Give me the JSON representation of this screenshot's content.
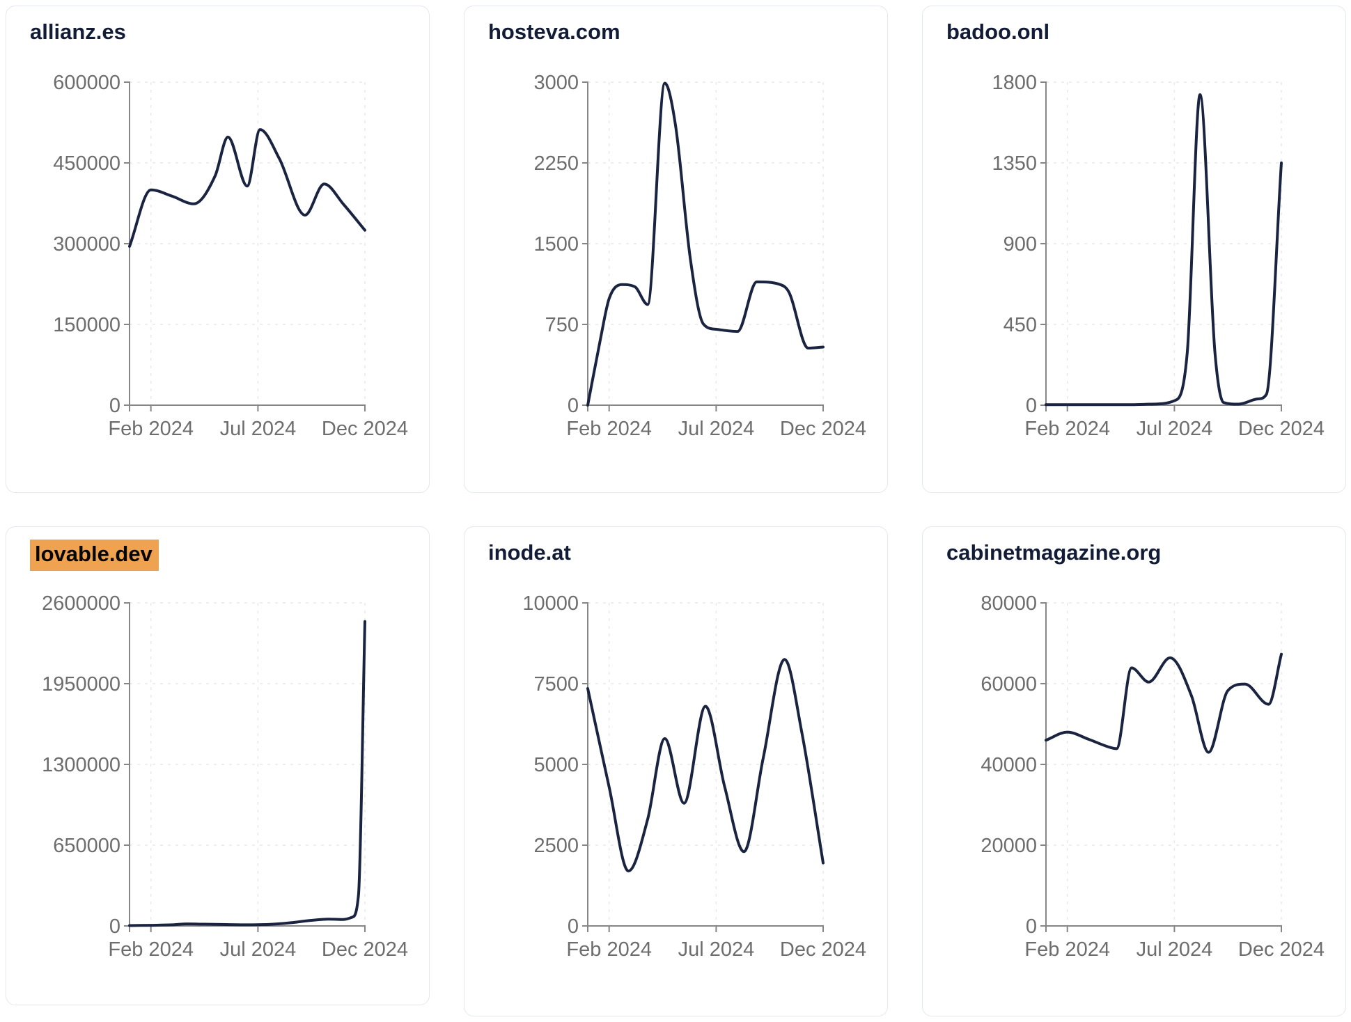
{
  "page": {
    "kind": "website-traffic-dashboard",
    "background": "#ffffff",
    "card_border_color": "#e3e7f0",
    "title_color": "#131c36",
    "highlight_color": "#efa24f",
    "line_color": "#1a2340",
    "axis_color": "#868686",
    "grid_color": "#e9e9e9",
    "tick_label_color": "#6d6d6d"
  },
  "chart_data": [
    {
      "type": "line",
      "title": "allianz.es",
      "highlighted": false,
      "x_domain": [
        0,
        11
      ],
      "x_unit": "month index, 0 = Jan 2024",
      "x_tick_positions": [
        1,
        6,
        11
      ],
      "x_tick_labels": [
        "Feb 2024",
        "Jul 2024",
        "Dec 2024"
      ],
      "y_ticks": [
        0,
        150000,
        300000,
        450000,
        600000
      ],
      "ylim": [
        0,
        600000
      ],
      "grid": true,
      "points": [
        [
          0,
          295000
        ],
        [
          1,
          400000
        ],
        [
          2,
          388000
        ],
        [
          3,
          374000
        ],
        [
          4,
          426000
        ],
        [
          4.6,
          498000
        ],
        [
          5.5,
          407000
        ],
        [
          6.1,
          512000
        ],
        [
          7,
          458000
        ],
        [
          8.2,
          353000
        ],
        [
          9.1,
          411000
        ],
        [
          10,
          373000
        ],
        [
          11,
          325000
        ]
      ]
    },
    {
      "type": "line",
      "title": "hosteva.com",
      "highlighted": false,
      "x_domain": [
        0,
        11
      ],
      "x_unit": "month index, 0 = Jan 2024",
      "x_tick_positions": [
        1,
        6,
        11
      ],
      "x_tick_labels": [
        "Feb 2024",
        "Jul 2024",
        "Dec 2024"
      ],
      "y_ticks": [
        0,
        750,
        1500,
        2250,
        3000
      ],
      "ylim": [
        0,
        3000
      ],
      "grid": true,
      "points": [
        [
          0,
          0
        ],
        [
          0.6,
          620
        ],
        [
          1,
          990
        ],
        [
          1.6,
          1120
        ],
        [
          2.2,
          1100
        ],
        [
          2.8,
          935
        ],
        [
          3.6,
          2990
        ],
        [
          4.1,
          2600
        ],
        [
          4.8,
          1350
        ],
        [
          5.4,
          755
        ],
        [
          6,
          705
        ],
        [
          7,
          685
        ],
        [
          7.9,
          1145
        ],
        [
          9,
          1120
        ],
        [
          9.4,
          1050
        ],
        [
          10.3,
          530
        ],
        [
          11,
          540
        ]
      ]
    },
    {
      "type": "line",
      "title": "badoo.onl",
      "highlighted": false,
      "x_domain": [
        0,
        11
      ],
      "x_unit": "month index, 0 = Jan 2024",
      "x_tick_positions": [
        1,
        6,
        11
      ],
      "x_tick_labels": [
        "Feb 2024",
        "Jul 2024",
        "Dec 2024"
      ],
      "y_ticks": [
        0,
        450,
        900,
        1350,
        1800
      ],
      "ylim": [
        0,
        1800
      ],
      "grid": true,
      "points": [
        [
          0,
          3
        ],
        [
          1,
          3
        ],
        [
          2,
          3
        ],
        [
          3,
          3
        ],
        [
          4,
          3
        ],
        [
          5,
          6
        ],
        [
          6,
          25
        ],
        [
          6.6,
          290
        ],
        [
          7.2,
          1730
        ],
        [
          7.9,
          290
        ],
        [
          8.3,
          15
        ],
        [
          9,
          6
        ],
        [
          9.9,
          35
        ],
        [
          10.3,
          60
        ],
        [
          11,
          1350
        ]
      ]
    },
    {
      "type": "line",
      "title": "lovable.dev",
      "highlighted": true,
      "x_domain": [
        0,
        11
      ],
      "x_unit": "month index, 0 = Jan 2024",
      "x_tick_positions": [
        1,
        6,
        11
      ],
      "x_tick_labels": [
        "Feb 2024",
        "Jul 2024",
        "Dec 2024"
      ],
      "y_ticks": [
        0,
        650000,
        1300000,
        1950000,
        2600000
      ],
      "ylim": [
        0,
        2600000
      ],
      "grid": true,
      "points": [
        [
          0,
          3000
        ],
        [
          1,
          5000
        ],
        [
          2,
          9000
        ],
        [
          2.7,
          16000
        ],
        [
          3.5,
          14000
        ],
        [
          4.5,
          11000
        ],
        [
          5.5,
          9000
        ],
        [
          6.5,
          12000
        ],
        [
          7.5,
          25000
        ],
        [
          8.5,
          45000
        ],
        [
          9.3,
          55000
        ],
        [
          10,
          52000
        ],
        [
          10.4,
          70000
        ],
        [
          10.7,
          250000
        ],
        [
          11,
          2450000
        ]
      ]
    },
    {
      "type": "line",
      "title": "inode.at",
      "highlighted": false,
      "x_domain": [
        0,
        11
      ],
      "x_unit": "month index, 0 = Jan 2024",
      "x_tick_positions": [
        1,
        6,
        11
      ],
      "x_tick_labels": [
        "Feb 2024",
        "Jul 2024",
        "Dec 2024"
      ],
      "y_ticks": [
        0,
        2500,
        5000,
        7500,
        10000
      ],
      "ylim": [
        0,
        10000
      ],
      "grid": true,
      "points": [
        [
          0,
          7350
        ],
        [
          1,
          4300
        ],
        [
          1.9,
          1700
        ],
        [
          2.8,
          3300
        ],
        [
          3.6,
          5800
        ],
        [
          4.5,
          3800
        ],
        [
          5.5,
          6800
        ],
        [
          6.4,
          4300
        ],
        [
          7.3,
          2300
        ],
        [
          8.2,
          5200
        ],
        [
          9.2,
          8250
        ],
        [
          10,
          6000
        ],
        [
          11,
          1950
        ]
      ]
    },
    {
      "type": "line",
      "title": "cabinetmagazine.org",
      "highlighted": false,
      "x_domain": [
        0,
        11
      ],
      "x_unit": "month index, 0 = Jan 2024",
      "x_tick_positions": [
        1,
        6,
        11
      ],
      "x_tick_labels": [
        "Feb 2024",
        "Jul 2024",
        "Dec 2024"
      ],
      "y_ticks": [
        0,
        20000,
        40000,
        60000,
        80000
      ],
      "ylim": [
        0,
        80000
      ],
      "grid": true,
      "points": [
        [
          0,
          46000
        ],
        [
          1,
          48000
        ],
        [
          2,
          46200
        ],
        [
          3,
          44200
        ],
        [
          3.3,
          43900
        ],
        [
          4,
          63900
        ],
        [
          4.8,
          60400
        ],
        [
          5.8,
          66400
        ],
        [
          6.8,
          57000
        ],
        [
          7.6,
          43000
        ],
        [
          8.5,
          58300
        ],
        [
          9.3,
          59900
        ],
        [
          10.4,
          54900
        ],
        [
          11,
          67300
        ]
      ]
    }
  ]
}
